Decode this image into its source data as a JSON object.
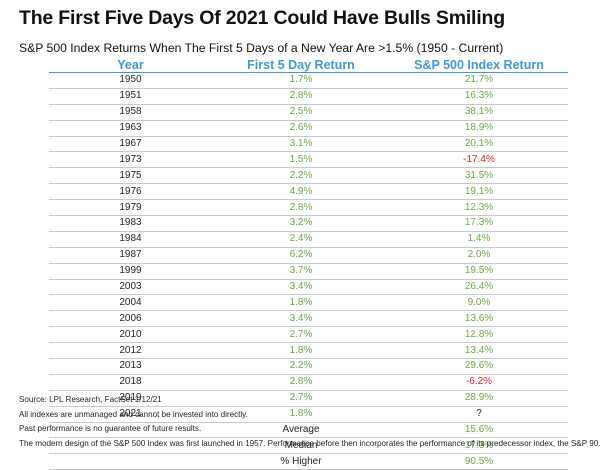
{
  "title": "The First Five Days Of 2021 Could Have Bulls Smiling",
  "subtitle": "S&P 500 Index Returns When The First 5 Days of a New Year Are >1.5% (1950 - Current)",
  "colors": {
    "header": "#3f98d4",
    "positive": "#6ba64a",
    "negative": "#e02020"
  },
  "chart_data": {
    "type": "table",
    "title": "The First Five Days Of 2021 Could Have Bulls Smiling",
    "subtitle": "S&P 500 Index Returns When The First 5 Days of a New Year Are >1.5% (1950 - Current)",
    "columns": [
      "Year",
      "First 5 Day Return",
      "S&P 500 Index Return"
    ],
    "rows": [
      [
        "1950",
        "1.7%",
        "21.7%"
      ],
      [
        "1951",
        "2.8%",
        "16.3%"
      ],
      [
        "1958",
        "2.5%",
        "38.1%"
      ],
      [
        "1963",
        "2.6%",
        "18.9%"
      ],
      [
        "1967",
        "3.1%",
        "20.1%"
      ],
      [
        "1973",
        "1.5%",
        "-17.4%"
      ],
      [
        "1975",
        "2.2%",
        "31.5%"
      ],
      [
        "1976",
        "4.9%",
        "19.1%"
      ],
      [
        "1979",
        "2.8%",
        "12.3%"
      ],
      [
        "1983",
        "3.2%",
        "17.3%"
      ],
      [
        "1984",
        "2.4%",
        "1.4%"
      ],
      [
        "1987",
        "6.2%",
        "2.0%"
      ],
      [
        "1999",
        "3.7%",
        "19.5%"
      ],
      [
        "2003",
        "3.4%",
        "26.4%"
      ],
      [
        "2004",
        "1.8%",
        "9.0%"
      ],
      [
        "2006",
        "3.4%",
        "13.6%"
      ],
      [
        "2010",
        "2.7%",
        "12.8%"
      ],
      [
        "2012",
        "1.8%",
        "13.4%"
      ],
      [
        "2013",
        "2.2%",
        "29.6%"
      ],
      [
        "2018",
        "2.8%",
        "-6.2%"
      ],
      [
        "2019",
        "2.7%",
        "28.9%"
      ],
      [
        "2021",
        "1.8%",
        "?"
      ]
    ],
    "summary": [
      {
        "label": "Average",
        "value": "15.6%"
      },
      {
        "label": "Median",
        "value": "17.3%"
      },
      {
        "label": "% Higher",
        "value": "90.5%"
      }
    ]
  },
  "notes": [
    "Source: LPL Research, FactSet 1/12/21",
    "All indexes are unmanaged and cannot be invested into directly.",
    "Past performance is no guarantee of future results.",
    "The modern design of the S&P 500 Index was first launched in 1957. Performance before then incorporates the performance of its predecessor index, the S&P 90."
  ]
}
